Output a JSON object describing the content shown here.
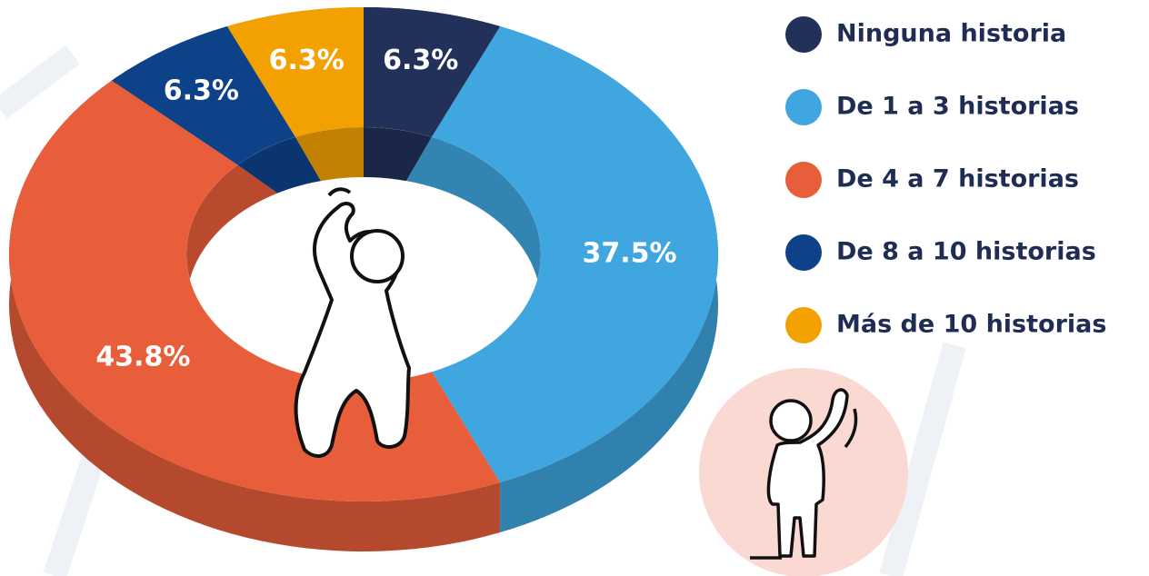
{
  "chart_data": {
    "type": "donut3d",
    "categories": [
      "Ninguna historia",
      "De 1 a 3 historias",
      "De 4 a 7 historias",
      "De 8 a 10 historias",
      "Más de 10 historias"
    ],
    "values": [
      6.3,
      37.5,
      43.8,
      6.3,
      6.3
    ],
    "value_labels": [
      "6.3%",
      "37.5%",
      "43.8%",
      "6.3%",
      "6.3%"
    ],
    "colors": [
      "#22315a",
      "#3fa6df",
      "#e85d3a",
      "#0d4289",
      "#f2a100"
    ]
  }
}
